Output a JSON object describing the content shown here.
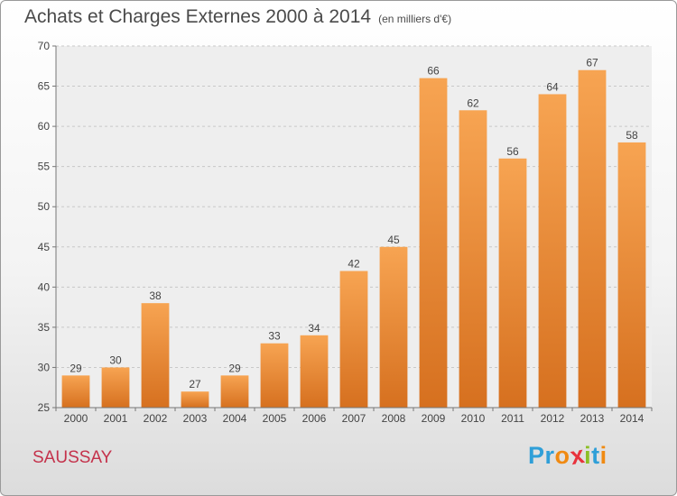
{
  "header": {
    "title": "Achats et Charges Externes 2000 à 2014",
    "subtitle": "(en milliers d'€)"
  },
  "footer": {
    "city": "SAUSSAY",
    "brand_letters": [
      "P",
      "r",
      "o",
      "x",
      "i",
      "t",
      "i"
    ],
    "brand_colors": [
      "#2f9fd8",
      "#2f9fd8",
      "#f08a12",
      "#e8323c",
      "#8cbf26",
      "#2f9fd8",
      "#f08a12"
    ]
  },
  "chart_data": {
    "type": "bar",
    "title": "Achats et Charges Externes 2000 à 2014",
    "subtitle": "(en milliers d'€)",
    "categories": [
      "2000",
      "2001",
      "2002",
      "2003",
      "2004",
      "2005",
      "2006",
      "2007",
      "2008",
      "2009",
      "2010",
      "2011",
      "2012",
      "2013",
      "2014"
    ],
    "values": [
      29,
      30,
      38,
      27,
      29,
      33,
      34,
      42,
      45,
      66,
      62,
      56,
      64,
      67,
      58
    ],
    "ylim": [
      25,
      70
    ],
    "yticks": [
      25,
      30,
      35,
      40,
      45,
      50,
      55,
      60,
      65,
      70
    ],
    "grid": true,
    "bar_color_top": "#f7a452",
    "bar_color_bottom": "#d6701f",
    "xlabel": "",
    "ylabel": ""
  }
}
